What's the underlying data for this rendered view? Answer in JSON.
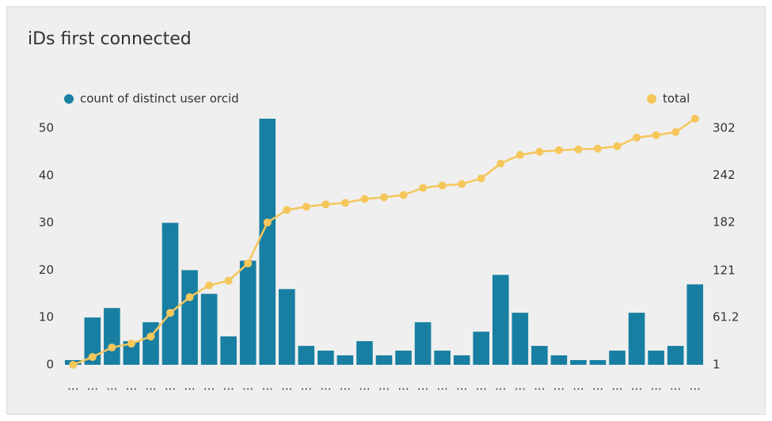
{
  "chart_data": {
    "type": "bar-line",
    "title": "iDs first connected",
    "categories": [
      "...",
      "...",
      "...",
      "...",
      "...",
      "...",
      "...",
      "...",
      "...",
      "...",
      "...",
      "...",
      "...",
      "...",
      "...",
      "...",
      "...",
      "...",
      "...",
      "...",
      "...",
      "...",
      "...",
      "...",
      "...",
      "...",
      "...",
      "...",
      "...",
      "...",
      "...",
      "...",
      "..."
    ],
    "series": [
      {
        "name": "count of distinct user orcid",
        "type": "bar",
        "color": "#187fa2",
        "values": [
          1,
          10,
          12,
          5,
          9,
          30,
          20,
          15,
          6,
          22,
          52,
          16,
          4,
          3,
          2,
          5,
          2,
          3,
          9,
          3,
          2,
          7,
          19,
          11,
          4,
          2,
          1,
          1,
          3,
          11,
          3,
          4,
          17
        ]
      },
      {
        "name": "total",
        "type": "line",
        "axis": "y2",
        "color": "#f5c75b",
        "values": [
          1,
          11,
          23,
          28,
          37,
          67,
          87,
          102,
          108,
          130,
          182,
          198,
          202,
          205,
          207,
          212,
          214,
          217,
          226,
          229,
          231,
          238,
          257,
          268,
          272,
          274,
          275,
          276,
          279,
          290,
          293,
          297,
          314
        ]
      }
    ],
    "ylim": [
      0,
      52
    ],
    "yticks": [
      0,
      10,
      20,
      30,
      40,
      50
    ],
    "y2lim": [
      1,
      314
    ],
    "y2ticks": [
      1,
      61.2,
      121,
      182,
      242,
      302
    ],
    "legend": "top"
  }
}
